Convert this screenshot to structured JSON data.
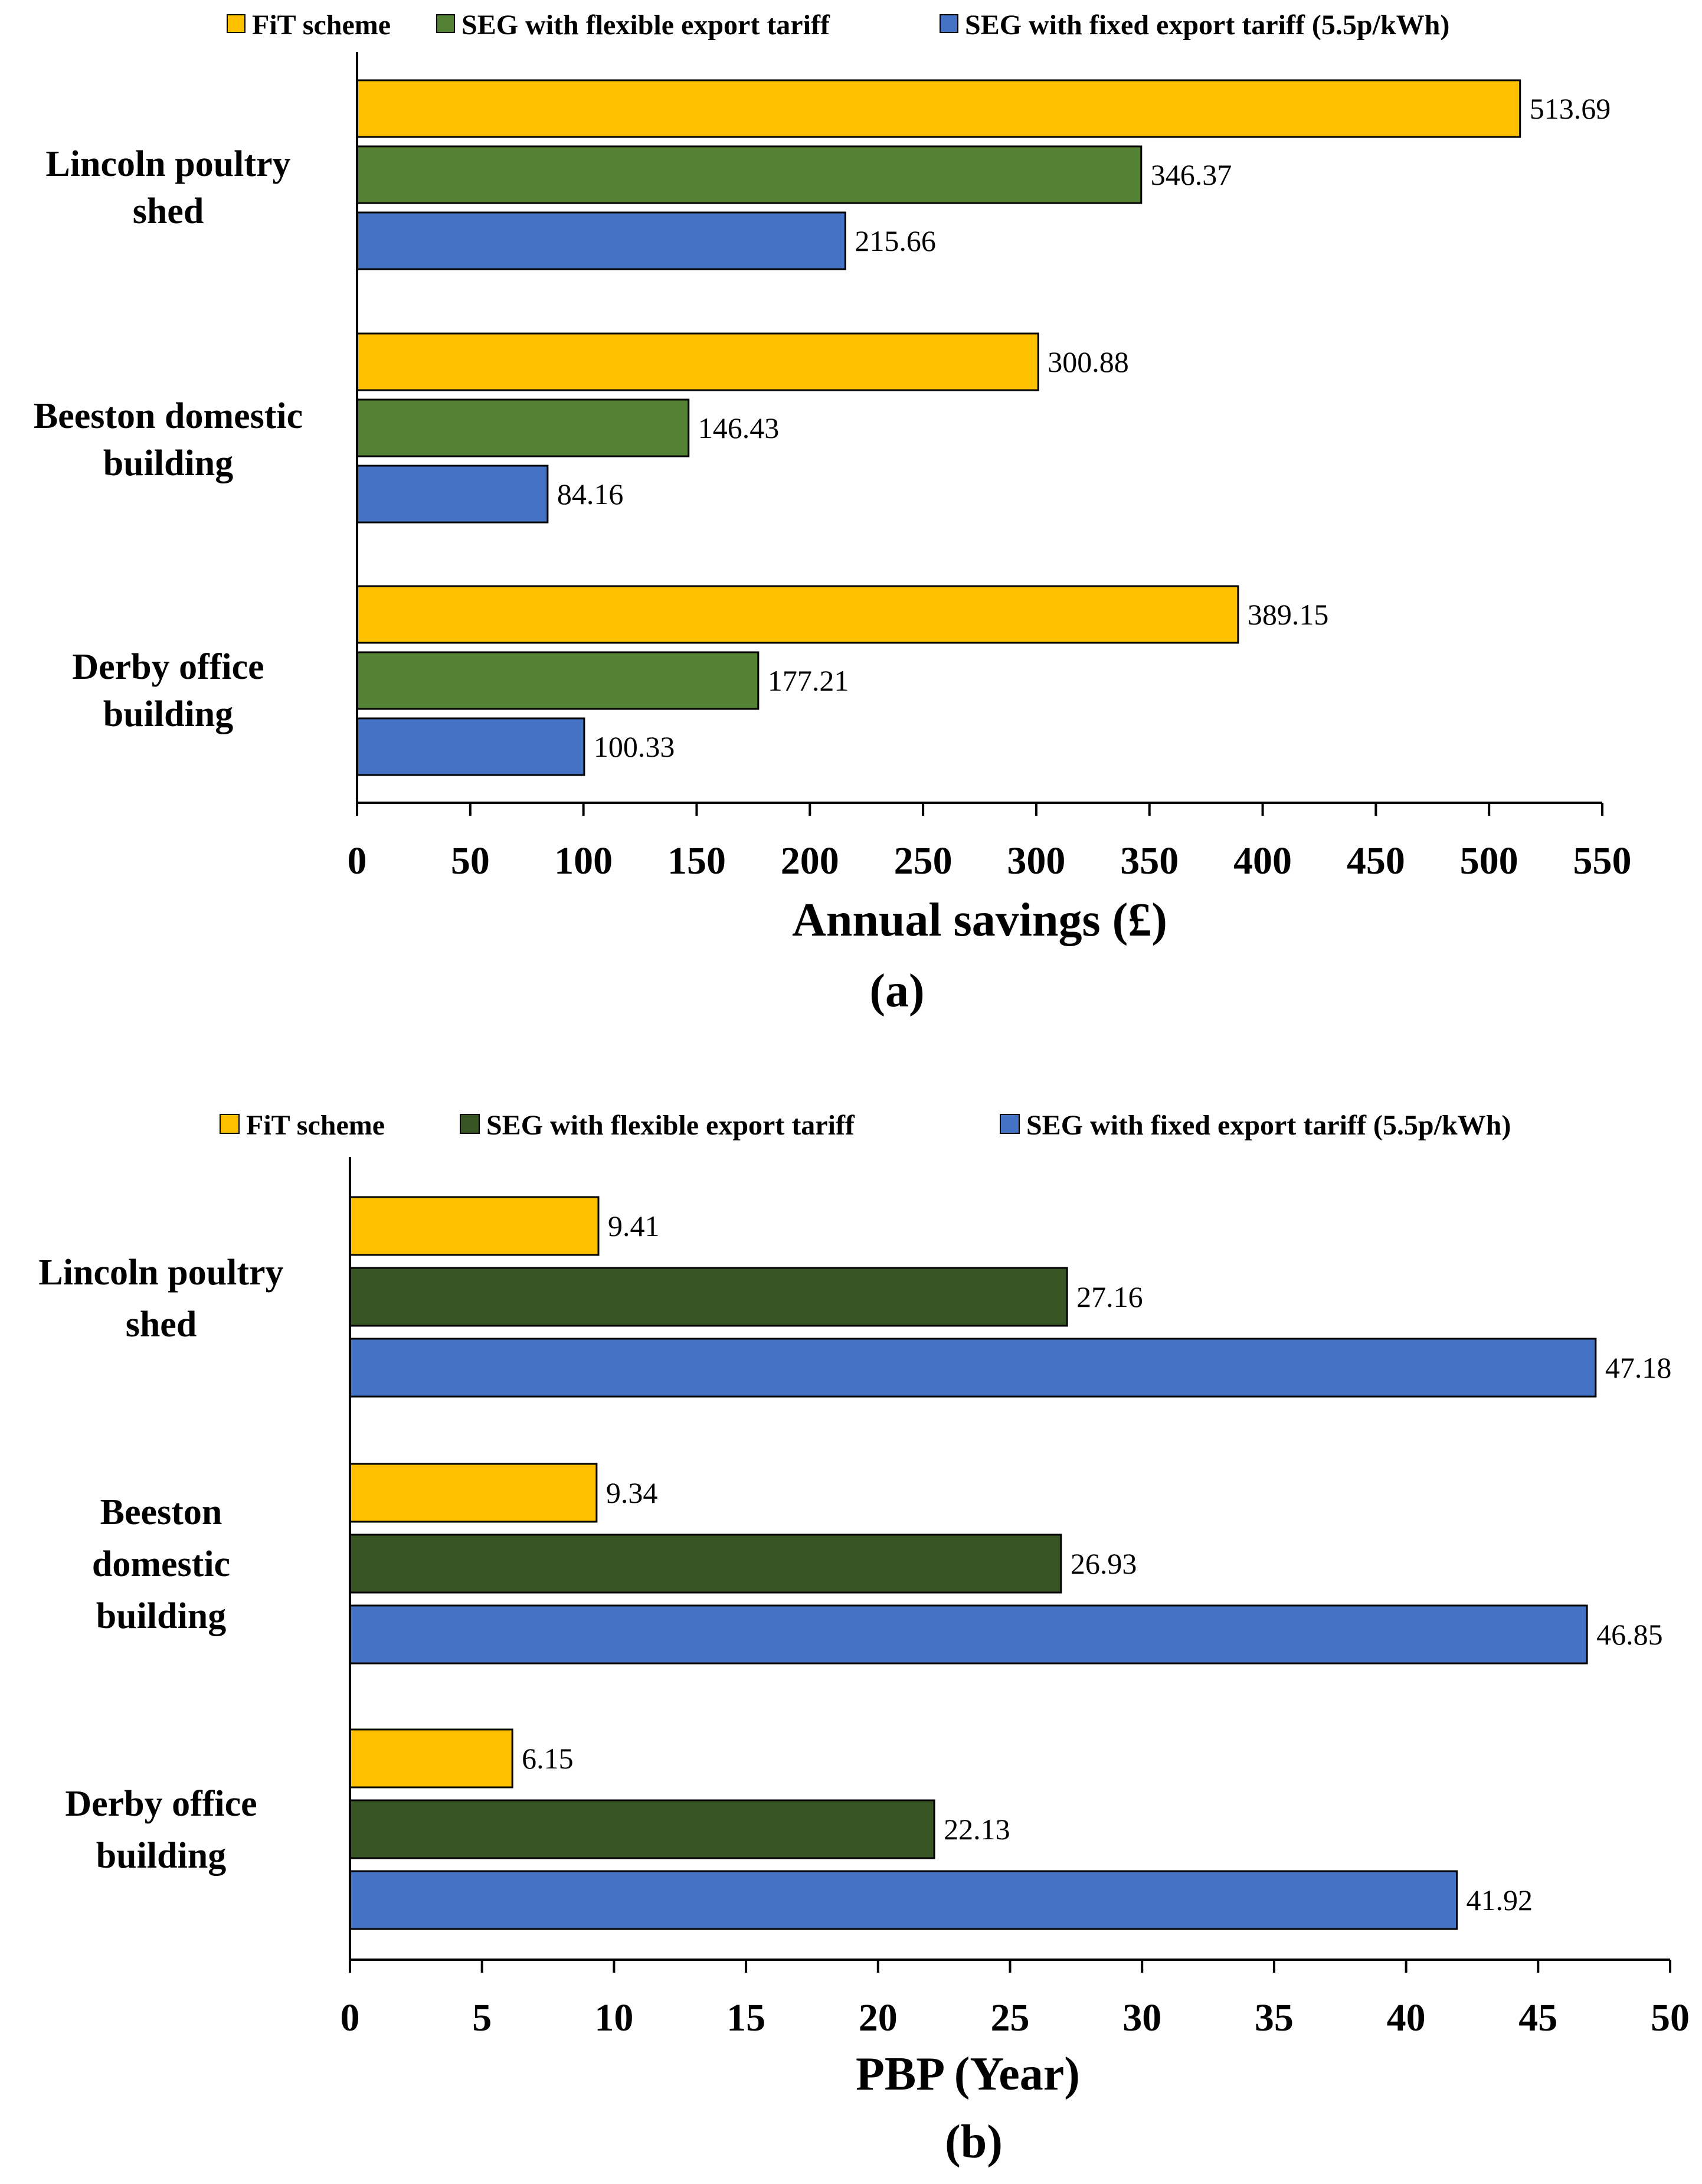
{
  "chart_data": [
    {
      "type": "bar",
      "orientation": "horizontal",
      "panel_label": "(a)",
      "categories": [
        [
          "Lincoln poultry",
          "shed"
        ],
        [
          "Beeston domestic",
          "building"
        ],
        [
          "Derby office",
          "building"
        ]
      ],
      "series": [
        {
          "name": "FiT scheme",
          "color": "#FFC000",
          "values": [
            513.69,
            300.88,
            389.15
          ]
        },
        {
          "name": "SEG with flexible export tariff",
          "color": "#548235",
          "values": [
            346.37,
            146.43,
            177.21
          ]
        },
        {
          "name": "SEG with fixed export tariff (5.5p/kWh)",
          "color": "#4472C4",
          "values": [
            215.66,
            84.16,
            100.33
          ]
        }
      ],
      "value_labels": [
        [
          "513.69",
          "300.88",
          "389.15"
        ],
        [
          "346.37",
          "146.43",
          "177.21"
        ],
        [
          "215.66",
          "84.16",
          "100.33"
        ]
      ],
      "xlabel": "Annual savings (£)",
      "xlim": [
        0,
        550
      ],
      "xticks": [
        "0",
        "50",
        "100",
        "150",
        "200",
        "250",
        "300",
        "350",
        "400",
        "450",
        "500",
        "550"
      ],
      "legend_position": "top"
    },
    {
      "type": "bar",
      "orientation": "horizontal",
      "panel_label": "(b)",
      "categories": [
        [
          "Lincoln poultry",
          "shed"
        ],
        [
          "Beeston",
          "domestic",
          "building"
        ],
        [
          "Derby office",
          "building"
        ]
      ],
      "series": [
        {
          "name": "FiT scheme",
          "color": "#FFC000",
          "values": [
            9.41,
            9.34,
            6.15
          ]
        },
        {
          "name": "SEG with flexible export tariff",
          "color": "#375623",
          "values": [
            27.16,
            26.93,
            22.13
          ]
        },
        {
          "name": "SEG with fixed export tariff (5.5p/kWh)",
          "color": "#4472C4",
          "values": [
            47.18,
            46.85,
            41.92
          ]
        }
      ],
      "value_labels": [
        [
          "9.41",
          "9.34",
          "6.15"
        ],
        [
          "27.16",
          "26.93",
          "22.13"
        ],
        [
          "47.18",
          "46.85",
          "41.92"
        ]
      ],
      "xlabel": "PBP (Year)",
      "xlim": [
        0,
        50
      ],
      "xticks": [
        "0",
        "5",
        "10",
        "15",
        "20",
        "25",
        "30",
        "35",
        "40",
        "45",
        "50"
      ],
      "legend_position": "top"
    }
  ]
}
